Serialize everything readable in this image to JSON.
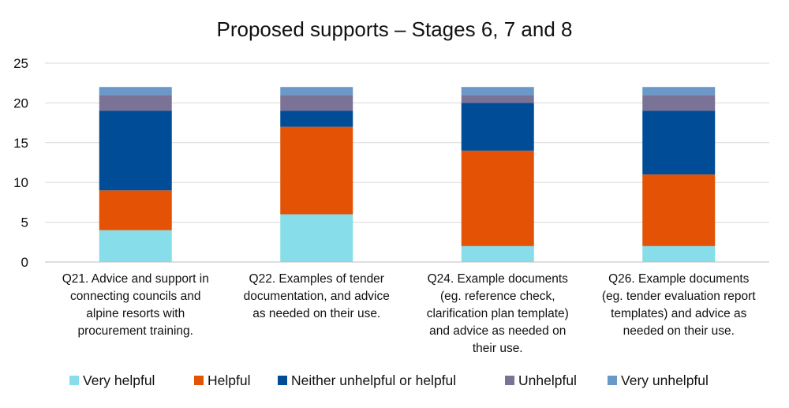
{
  "chart_data": {
    "type": "bar",
    "stacked": true,
    "title": "Proposed supports – Stages 6, 7 and 8",
    "xlabel": "",
    "ylabel": "",
    "ylim": [
      0,
      25
    ],
    "yticks": [
      0,
      5,
      10,
      15,
      20,
      25
    ],
    "grid": true,
    "legend_position": "bottom",
    "categories": [
      "Q21. Advice and support in connecting councils and alpine resorts with procurement training.",
      "Q22. Examples of tender documentation, and advice as needed on their use.",
      "Q24. Example documents (eg. reference check, clarification plan template) and advice as needed on their use.",
      "Q26. Example documents (eg. tender evaluation report templates) and advice as needed on their use."
    ],
    "category_lines": [
      [
        "Q21. Advice and support in",
        "connecting councils and",
        "alpine resorts with",
        "procurement training."
      ],
      [
        "Q22. Examples of tender",
        "documentation, and advice",
        "as needed on their use."
      ],
      [
        "Q24. Example documents",
        "(eg. reference check,",
        "clarification plan template)",
        "and advice as needed on",
        "their use."
      ],
      [
        "Q26. Example documents",
        "(eg. tender evaluation report",
        "templates) and advice as",
        "needed on their use."
      ]
    ],
    "series": [
      {
        "name": "Very helpful",
        "color": "#87DDE9",
        "values": [
          4,
          6,
          2,
          2
        ]
      },
      {
        "name": "Helpful",
        "color": "#E35205",
        "values": [
          5,
          11,
          12,
          9
        ]
      },
      {
        "name": "Neither unhelpful or helpful",
        "color": "#004C97",
        "values": [
          10,
          2,
          6,
          8
        ]
      },
      {
        "name": "Unhelpful",
        "color": "#7A7396",
        "values": [
          2,
          2,
          1,
          2
        ]
      },
      {
        "name": "Very unhelpful",
        "color": "#6A98C8",
        "values": [
          1,
          1,
          1,
          1
        ]
      }
    ]
  }
}
